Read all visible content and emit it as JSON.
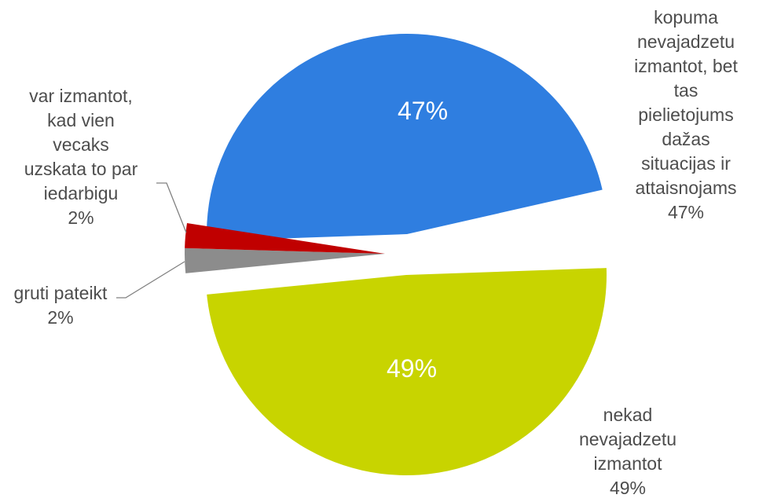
{
  "chart_data": {
    "type": "pie",
    "exploded": true,
    "slices": [
      {
        "label_lines": [
          "kopuma",
          "nevajadzetu",
          "izmantot, bet",
          "tas",
          "pielietojums",
          "dažas",
          "situacijas ir",
          "attaisnojams"
        ],
        "value": 47,
        "value_label": "47%",
        "inner_label": "47%",
        "color": "#2f7ee0"
      },
      {
        "label_lines": [
          "nekad",
          "nevajadzetu",
          "izmantot"
        ],
        "value": 49,
        "value_label": "49%",
        "inner_label": "49%",
        "color": "#c8d400"
      },
      {
        "label_lines": [
          "gruti pateikt"
        ],
        "value": 2,
        "value_label": "2%",
        "inner_label": "",
        "color": "#8c8c8c"
      },
      {
        "label_lines": [
          "var izmantot,",
          "kad vien",
          "vecaks",
          "uzskata to par",
          "iedarbigu"
        ],
        "value": 2,
        "value_label": "2%",
        "inner_label": "",
        "color": "#c00000"
      }
    ]
  }
}
